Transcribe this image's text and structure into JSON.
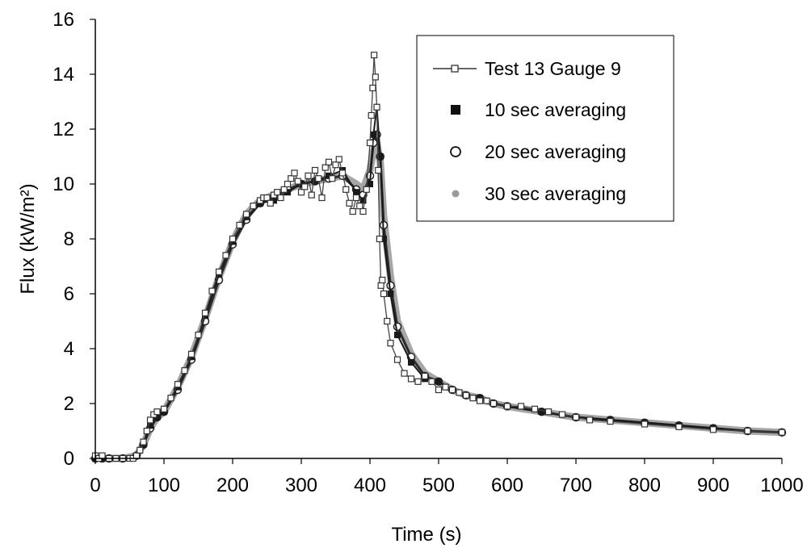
{
  "chart_data": {
    "type": "line",
    "title": "",
    "xlabel": "Time (s)",
    "ylabel": "Flux (kW/m²)",
    "xlim": [
      0,
      1000
    ],
    "ylim": [
      0,
      16
    ],
    "x_ticks": [
      0,
      100,
      200,
      300,
      400,
      500,
      600,
      700,
      800,
      900,
      1000
    ],
    "y_ticks": [
      0,
      2,
      4,
      6,
      8,
      10,
      12,
      14,
      16
    ],
    "x_tick_labels": [
      "0",
      "100",
      "200",
      "300",
      "400",
      "500",
      "600",
      "700",
      "800",
      "900",
      "1000"
    ],
    "y_tick_labels": [
      "0",
      "2",
      "4",
      "6",
      "8",
      "10",
      "12",
      "14",
      "16"
    ],
    "grid": false,
    "legend_position": "top-right",
    "series": [
      {
        "name": "Test 13 Gauge 9",
        "marker": "open-square-line",
        "color": "#444444",
        "x": [
          0,
          5,
          10,
          20,
          30,
          40,
          50,
          55,
          60,
          65,
          70,
          75,
          80,
          85,
          90,
          100,
          110,
          120,
          130,
          140,
          150,
          160,
          170,
          180,
          190,
          200,
          210,
          220,
          230,
          240,
          245,
          250,
          255,
          260,
          265,
          270,
          275,
          280,
          285,
          290,
          295,
          300,
          305,
          310,
          315,
          320,
          325,
          330,
          335,
          340,
          345,
          350,
          355,
          360,
          365,
          370,
          375,
          380,
          385,
          390,
          395,
          400,
          402,
          404,
          406,
          408,
          410,
          412,
          414,
          416,
          418,
          420,
          425,
          430,
          440,
          450,
          460,
          470,
          480,
          490,
          500,
          510,
          520,
          530,
          540,
          550,
          560,
          570,
          580,
          600,
          620,
          640,
          660,
          680,
          700,
          720,
          750,
          800,
          850,
          900,
          950,
          1000
        ],
        "y": [
          0.1,
          0.0,
          0.1,
          0.0,
          0.0,
          0.0,
          0.0,
          0.0,
          0.1,
          0.3,
          0.6,
          1.0,
          1.4,
          1.6,
          1.7,
          1.8,
          2.2,
          2.7,
          3.2,
          3.8,
          4.5,
          5.3,
          6.1,
          6.8,
          7.4,
          8.0,
          8.5,
          8.9,
          9.2,
          9.4,
          9.5,
          9.5,
          9.3,
          9.6,
          9.7,
          9.5,
          9.8,
          10.0,
          10.2,
          10.4,
          10.1,
          9.7,
          9.9,
          10.3,
          9.6,
          10.5,
          10.2,
          9.5,
          10.6,
          10.8,
          10.2,
          10.7,
          10.9,
          10.4,
          9.8,
          9.3,
          9.0,
          9.5,
          9.2,
          9.0,
          9.8,
          11.5,
          12.5,
          13.5,
          14.7,
          13.9,
          12.8,
          10.5,
          8.0,
          6.3,
          6.5,
          6.0,
          5.0,
          4.2,
          3.6,
          3.1,
          2.9,
          2.8,
          3.0,
          2.8,
          2.5,
          2.6,
          2.5,
          2.4,
          2.3,
          2.2,
          2.1,
          2.1,
          2.0,
          1.9,
          1.9,
          1.8,
          1.7,
          1.6,
          1.5,
          1.4,
          1.35,
          1.25,
          1.15,
          1.05,
          1.0,
          0.95
        ]
      },
      {
        "name": "10 sec averaging",
        "marker": "filled-square",
        "color": "#1a1a1a",
        "x": [
          0,
          10,
          20,
          40,
          60,
          70,
          80,
          90,
          100,
          120,
          140,
          160,
          180,
          200,
          220,
          240,
          260,
          280,
          300,
          320,
          340,
          360,
          380,
          390,
          400,
          405,
          410,
          415,
          420,
          430,
          440,
          460,
          480,
          500,
          520,
          540,
          560,
          580,
          600,
          650,
          700,
          750,
          800,
          850,
          900,
          950,
          1000
        ],
        "y": [
          0.0,
          0.0,
          0.0,
          0.0,
          0.1,
          0.5,
          1.2,
          1.5,
          1.7,
          2.6,
          3.7,
          5.2,
          6.7,
          7.9,
          8.8,
          9.3,
          9.4,
          9.7,
          10.0,
          10.1,
          10.3,
          10.5,
          9.7,
          9.4,
          10.0,
          11.8,
          12.8,
          11.0,
          8.0,
          6.0,
          4.5,
          3.5,
          2.9,
          2.8,
          2.5,
          2.3,
          2.2,
          2.0,
          1.9,
          1.7,
          1.5,
          1.4,
          1.3,
          1.2,
          1.1,
          1.0,
          0.95
        ]
      },
      {
        "name": "20 sec averaging",
        "marker": "open-circle",
        "color": "#1a1a1a",
        "x": [
          0,
          10,
          20,
          40,
          60,
          70,
          80,
          90,
          100,
          120,
          140,
          160,
          180,
          200,
          220,
          240,
          260,
          280,
          300,
          320,
          340,
          360,
          380,
          390,
          400,
          405,
          410,
          415,
          420,
          430,
          440,
          460,
          480,
          500,
          520,
          540,
          560,
          580,
          600,
          650,
          700,
          750,
          800,
          850,
          900,
          950,
          1000
        ],
        "y": [
          0.0,
          0.0,
          0.0,
          0.0,
          0.1,
          0.5,
          1.1,
          1.5,
          1.7,
          2.5,
          3.6,
          5.0,
          6.5,
          7.8,
          8.7,
          9.3,
          9.5,
          9.8,
          10.0,
          10.1,
          10.2,
          10.3,
          9.8,
          9.6,
          10.3,
          11.5,
          11.8,
          11.0,
          8.5,
          6.3,
          4.8,
          3.7,
          3.0,
          2.8,
          2.5,
          2.3,
          2.2,
          2.0,
          1.9,
          1.7,
          1.5,
          1.4,
          1.3,
          1.2,
          1.1,
          1.0,
          0.95
        ]
      },
      {
        "name": "30 sec averaging",
        "marker": "gray-dot",
        "color": "#a6a6a6",
        "x": [
          0,
          10,
          20,
          40,
          60,
          70,
          80,
          90,
          100,
          120,
          140,
          160,
          180,
          200,
          220,
          240,
          260,
          280,
          300,
          320,
          340,
          360,
          380,
          390,
          400,
          405,
          410,
          415,
          420,
          430,
          440,
          460,
          480,
          500,
          520,
          540,
          560,
          580,
          600,
          650,
          700,
          750,
          800,
          850,
          900,
          950,
          1000
        ],
        "y": [
          0.0,
          0.0,
          0.0,
          0.0,
          0.1,
          0.5,
          1.1,
          1.5,
          1.7,
          2.6,
          3.7,
          5.1,
          6.6,
          7.9,
          8.9,
          9.4,
          9.6,
          9.8,
          10.0,
          10.1,
          10.2,
          10.3,
          10.0,
          9.8,
          10.5,
          11.2,
          11.5,
          10.8,
          8.8,
          6.6,
          5.0,
          3.8,
          3.1,
          2.8,
          2.5,
          2.3,
          2.2,
          2.0,
          1.9,
          1.7,
          1.5,
          1.4,
          1.3,
          1.2,
          1.1,
          1.0,
          0.95
        ]
      }
    ]
  }
}
